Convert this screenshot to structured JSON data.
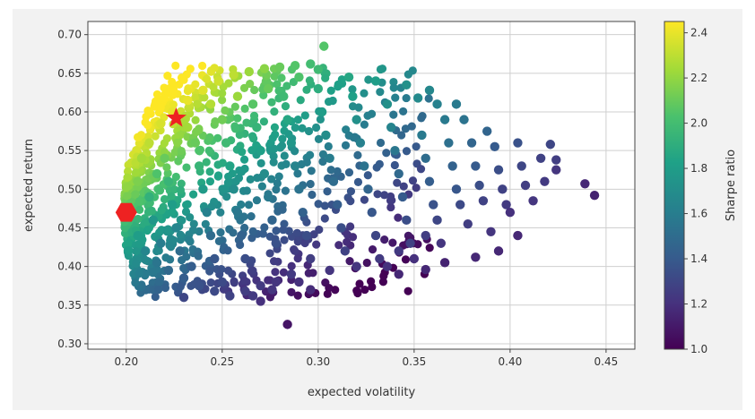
{
  "chart_data": {
    "type": "scatter",
    "title": "",
    "xlabel": "expected volatility",
    "ylabel": "expected return",
    "xlim": [
      0.18,
      0.465
    ],
    "ylim": [
      0.293,
      0.717
    ],
    "grid": true,
    "xticks": [
      {
        "value": 0.2,
        "label": "0.20"
      },
      {
        "value": 0.25,
        "label": "0.25"
      },
      {
        "value": 0.3,
        "label": "0.30"
      },
      {
        "value": 0.35,
        "label": "0.35"
      },
      {
        "value": 0.4,
        "label": "0.40"
      },
      {
        "value": 0.45,
        "label": "0.45"
      }
    ],
    "yticks": [
      {
        "value": 0.3,
        "label": "0.30"
      },
      {
        "value": 0.35,
        "label": "0.35"
      },
      {
        "value": 0.4,
        "label": "0.40"
      },
      {
        "value": 0.45,
        "label": "0.45"
      },
      {
        "value": 0.5,
        "label": "0.50"
      },
      {
        "value": 0.55,
        "label": "0.55"
      },
      {
        "value": 0.6,
        "label": "0.60"
      },
      {
        "value": 0.65,
        "label": "0.65"
      },
      {
        "value": 0.7,
        "label": "0.70"
      }
    ],
    "colorbar": {
      "label": "Sharpe ratio",
      "colormap": "viridis",
      "range": [
        1.0,
        2.45
      ],
      "ticks": [
        {
          "value": 1.0,
          "label": "1.0"
        },
        {
          "value": 1.2,
          "label": "1.2"
        },
        {
          "value": 1.4,
          "label": "1.4"
        },
        {
          "value": 1.6,
          "label": "1.6"
        },
        {
          "value": 1.8,
          "label": "1.8"
        },
        {
          "value": 2.0,
          "label": "2.0"
        },
        {
          "value": 2.2,
          "label": "2.2"
        },
        {
          "value": 2.4,
          "label": "2.4"
        }
      ]
    },
    "markers": [
      {
        "shape": "star",
        "x": 0.226,
        "y": 0.592,
        "color": "#ee2222"
      },
      {
        "shape": "hexagon",
        "x": 0.2,
        "y": 0.47,
        "color": "#ee2222"
      }
    ],
    "points": [
      {
        "x": 0.202,
        "y": 0.47,
        "s": 2.0
      },
      {
        "x": 0.206,
        "y": 0.51,
        "s": 2.15
      },
      {
        "x": 0.208,
        "y": 0.54,
        "s": 2.24
      },
      {
        "x": 0.212,
        "y": 0.56,
        "s": 2.3
      },
      {
        "x": 0.218,
        "y": 0.585,
        "s": 2.36
      },
      {
        "x": 0.224,
        "y": 0.6,
        "s": 2.4
      },
      {
        "x": 0.232,
        "y": 0.615,
        "s": 2.4
      },
      {
        "x": 0.24,
        "y": 0.628,
        "s": 2.38
      },
      {
        "x": 0.248,
        "y": 0.64,
        "s": 2.34
      },
      {
        "x": 0.256,
        "y": 0.648,
        "s": 2.3
      },
      {
        "x": 0.264,
        "y": 0.652,
        "s": 2.22
      },
      {
        "x": 0.272,
        "y": 0.656,
        "s": 2.18
      },
      {
        "x": 0.28,
        "y": 0.658,
        "s": 2.1
      },
      {
        "x": 0.288,
        "y": 0.66,
        "s": 2.05
      },
      {
        "x": 0.296,
        "y": 0.662,
        "s": 2.0
      },
      {
        "x": 0.303,
        "y": 0.685,
        "s": 2.05
      },
      {
        "x": 0.206,
        "y": 0.44,
        "s": 1.8
      },
      {
        "x": 0.21,
        "y": 0.42,
        "s": 1.65
      },
      {
        "x": 0.216,
        "y": 0.405,
        "s": 1.55
      },
      {
        "x": 0.222,
        "y": 0.395,
        "s": 1.48
      },
      {
        "x": 0.23,
        "y": 0.385,
        "s": 1.42
      },
      {
        "x": 0.238,
        "y": 0.375,
        "s": 1.36
      },
      {
        "x": 0.246,
        "y": 0.368,
        "s": 1.32
      },
      {
        "x": 0.254,
        "y": 0.362,
        "s": 1.28
      },
      {
        "x": 0.262,
        "y": 0.368,
        "s": 1.26
      },
      {
        "x": 0.27,
        "y": 0.375,
        "s": 1.24
      },
      {
        "x": 0.278,
        "y": 0.38,
        "s": 1.22
      },
      {
        "x": 0.286,
        "y": 0.39,
        "s": 1.24
      },
      {
        "x": 0.284,
        "y": 0.325,
        "s": 1.08
      },
      {
        "x": 0.22,
        "y": 0.54,
        "s": 2.1
      },
      {
        "x": 0.222,
        "y": 0.51,
        "s": 1.95
      },
      {
        "x": 0.224,
        "y": 0.48,
        "s": 1.8
      },
      {
        "x": 0.226,
        "y": 0.45,
        "s": 1.65
      },
      {
        "x": 0.228,
        "y": 0.42,
        "s": 1.5
      },
      {
        "x": 0.236,
        "y": 0.56,
        "s": 2.1
      },
      {
        "x": 0.238,
        "y": 0.53,
        "s": 1.95
      },
      {
        "x": 0.24,
        "y": 0.5,
        "s": 1.78
      },
      {
        "x": 0.242,
        "y": 0.47,
        "s": 1.62
      },
      {
        "x": 0.244,
        "y": 0.44,
        "s": 1.5
      },
      {
        "x": 0.246,
        "y": 0.41,
        "s": 1.38
      },
      {
        "x": 0.25,
        "y": 0.59,
        "s": 2.12
      },
      {
        "x": 0.252,
        "y": 0.56,
        "s": 1.98
      },
      {
        "x": 0.254,
        "y": 0.53,
        "s": 1.84
      },
      {
        "x": 0.256,
        "y": 0.5,
        "s": 1.7
      },
      {
        "x": 0.258,
        "y": 0.47,
        "s": 1.56
      },
      {
        "x": 0.26,
        "y": 0.44,
        "s": 1.44
      },
      {
        "x": 0.262,
        "y": 0.41,
        "s": 1.34
      },
      {
        "x": 0.266,
        "y": 0.61,
        "s": 2.06
      },
      {
        "x": 0.268,
        "y": 0.58,
        "s": 1.94
      },
      {
        "x": 0.27,
        "y": 0.55,
        "s": 1.82
      },
      {
        "x": 0.272,
        "y": 0.52,
        "s": 1.7
      },
      {
        "x": 0.274,
        "y": 0.49,
        "s": 1.58
      },
      {
        "x": 0.276,
        "y": 0.46,
        "s": 1.46
      },
      {
        "x": 0.278,
        "y": 0.43,
        "s": 1.36
      },
      {
        "x": 0.282,
        "y": 0.62,
        "s": 1.98
      },
      {
        "x": 0.284,
        "y": 0.59,
        "s": 1.86
      },
      {
        "x": 0.286,
        "y": 0.56,
        "s": 1.76
      },
      {
        "x": 0.288,
        "y": 0.53,
        "s": 1.64
      },
      {
        "x": 0.29,
        "y": 0.5,
        "s": 1.54
      },
      {
        "x": 0.292,
        "y": 0.47,
        "s": 1.44
      },
      {
        "x": 0.294,
        "y": 0.44,
        "s": 1.34
      },
      {
        "x": 0.296,
        "y": 0.41,
        "s": 1.26
      },
      {
        "x": 0.3,
        "y": 0.63,
        "s": 1.9
      },
      {
        "x": 0.302,
        "y": 0.6,
        "s": 1.8
      },
      {
        "x": 0.304,
        "y": 0.57,
        "s": 1.7
      },
      {
        "x": 0.306,
        "y": 0.54,
        "s": 1.6
      },
      {
        "x": 0.308,
        "y": 0.51,
        "s": 1.5
      },
      {
        "x": 0.31,
        "y": 0.48,
        "s": 1.42
      },
      {
        "x": 0.312,
        "y": 0.45,
        "s": 1.34
      },
      {
        "x": 0.314,
        "y": 0.42,
        "s": 1.28
      },
      {
        "x": 0.318,
        "y": 0.62,
        "s": 1.82
      },
      {
        "x": 0.32,
        "y": 0.59,
        "s": 1.72
      },
      {
        "x": 0.322,
        "y": 0.56,
        "s": 1.62
      },
      {
        "x": 0.324,
        "y": 0.53,
        "s": 1.54
      },
      {
        "x": 0.326,
        "y": 0.5,
        "s": 1.46
      },
      {
        "x": 0.328,
        "y": 0.47,
        "s": 1.38
      },
      {
        "x": 0.33,
        "y": 0.44,
        "s": 1.3
      },
      {
        "x": 0.332,
        "y": 0.41,
        "s": 1.24
      },
      {
        "x": 0.336,
        "y": 0.61,
        "s": 1.72
      },
      {
        "x": 0.338,
        "y": 0.58,
        "s": 1.64
      },
      {
        "x": 0.34,
        "y": 0.55,
        "s": 1.56
      },
      {
        "x": 0.342,
        "y": 0.52,
        "s": 1.48
      },
      {
        "x": 0.344,
        "y": 0.49,
        "s": 1.4
      },
      {
        "x": 0.346,
        "y": 0.46,
        "s": 1.34
      },
      {
        "x": 0.348,
        "y": 0.43,
        "s": 1.28
      },
      {
        "x": 0.352,
        "y": 0.618,
        "s": 1.68
      },
      {
        "x": 0.354,
        "y": 0.57,
        "s": 1.58
      },
      {
        "x": 0.356,
        "y": 0.54,
        "s": 1.5
      },
      {
        "x": 0.358,
        "y": 0.51,
        "s": 1.42
      },
      {
        "x": 0.36,
        "y": 0.48,
        "s": 1.36
      },
      {
        "x": 0.362,
        "y": 0.46,
        "s": 1.3
      },
      {
        "x": 0.366,
        "y": 0.59,
        "s": 1.58
      },
      {
        "x": 0.368,
        "y": 0.56,
        "s": 1.52
      },
      {
        "x": 0.37,
        "y": 0.53,
        "s": 1.44
      },
      {
        "x": 0.372,
        "y": 0.5,
        "s": 1.38
      },
      {
        "x": 0.374,
        "y": 0.48,
        "s": 1.32
      },
      {
        "x": 0.38,
        "y": 0.56,
        "s": 1.46
      },
      {
        "x": 0.382,
        "y": 0.53,
        "s": 1.4
      },
      {
        "x": 0.384,
        "y": 0.505,
        "s": 1.34
      },
      {
        "x": 0.386,
        "y": 0.485,
        "s": 1.28
      },
      {
        "x": 0.392,
        "y": 0.555,
        "s": 1.4
      },
      {
        "x": 0.394,
        "y": 0.525,
        "s": 1.34
      },
      {
        "x": 0.396,
        "y": 0.5,
        "s": 1.28
      },
      {
        "x": 0.398,
        "y": 0.48,
        "s": 1.24
      },
      {
        "x": 0.404,
        "y": 0.56,
        "s": 1.36
      },
      {
        "x": 0.406,
        "y": 0.53,
        "s": 1.3
      },
      {
        "x": 0.408,
        "y": 0.505,
        "s": 1.26
      },
      {
        "x": 0.412,
        "y": 0.485,
        "s": 1.22
      },
      {
        "x": 0.416,
        "y": 0.54,
        "s": 1.28
      },
      {
        "x": 0.418,
        "y": 0.51,
        "s": 1.24
      },
      {
        "x": 0.421,
        "y": 0.558,
        "s": 1.3
      },
      {
        "x": 0.424,
        "y": 0.538,
        "s": 1.26
      },
      {
        "x": 0.424,
        "y": 0.525,
        "s": 1.22
      },
      {
        "x": 0.439,
        "y": 0.507,
        "s": 1.16
      },
      {
        "x": 0.444,
        "y": 0.492,
        "s": 1.14
      },
      {
        "x": 0.378,
        "y": 0.455,
        "s": 1.26
      },
      {
        "x": 0.39,
        "y": 0.445,
        "s": 1.22
      },
      {
        "x": 0.4,
        "y": 0.47,
        "s": 1.2
      },
      {
        "x": 0.356,
        "y": 0.44,
        "s": 1.26
      },
      {
        "x": 0.364,
        "y": 0.43,
        "s": 1.22
      },
      {
        "x": 0.342,
        "y": 0.42,
        "s": 1.24
      },
      {
        "x": 0.35,
        "y": 0.41,
        "s": 1.2
      },
      {
        "x": 0.336,
        "y": 0.4,
        "s": 1.2
      },
      {
        "x": 0.32,
        "y": 0.4,
        "s": 1.22
      },
      {
        "x": 0.306,
        "y": 0.395,
        "s": 1.22
      },
      {
        "x": 0.29,
        "y": 0.38,
        "s": 1.2
      },
      {
        "x": 0.276,
        "y": 0.37,
        "s": 1.22
      },
      {
        "x": 0.266,
        "y": 0.362,
        "s": 1.24
      },
      {
        "x": 0.342,
        "y": 0.39,
        "s": 1.16
      },
      {
        "x": 0.356,
        "y": 0.396,
        "s": 1.16
      },
      {
        "x": 0.366,
        "y": 0.405,
        "s": 1.14
      },
      {
        "x": 0.382,
        "y": 0.412,
        "s": 1.16
      },
      {
        "x": 0.394,
        "y": 0.42,
        "s": 1.16
      },
      {
        "x": 0.404,
        "y": 0.44,
        "s": 1.16
      },
      {
        "x": 0.33,
        "y": 0.64,
        "s": 1.8
      },
      {
        "x": 0.316,
        "y": 0.645,
        "s": 1.86
      },
      {
        "x": 0.346,
        "y": 0.635,
        "s": 1.72
      },
      {
        "x": 0.362,
        "y": 0.61,
        "s": 1.62
      },
      {
        "x": 0.376,
        "y": 0.59,
        "s": 1.54
      },
      {
        "x": 0.388,
        "y": 0.575,
        "s": 1.46
      },
      {
        "x": 0.372,
        "y": 0.61,
        "s": 1.58
      },
      {
        "x": 0.358,
        "y": 0.628,
        "s": 1.66
      },
      {
        "x": 0.232,
        "y": 0.58,
        "s": 2.24
      },
      {
        "x": 0.216,
        "y": 0.52,
        "s": 2.04
      },
      {
        "x": 0.212,
        "y": 0.49,
        "s": 1.92
      },
      {
        "x": 0.214,
        "y": 0.46,
        "s": 1.76
      },
      {
        "x": 0.218,
        "y": 0.43,
        "s": 1.6
      },
      {
        "x": 0.234,
        "y": 0.4,
        "s": 1.42
      },
      {
        "x": 0.25,
        "y": 0.38,
        "s": 1.32
      },
      {
        "x": 0.258,
        "y": 0.62,
        "s": 2.22
      },
      {
        "x": 0.244,
        "y": 0.61,
        "s": 2.28
      },
      {
        "x": 0.274,
        "y": 0.63,
        "s": 2.1
      },
      {
        "x": 0.29,
        "y": 0.645,
        "s": 2.04
      },
      {
        "x": 0.3,
        "y": 0.655,
        "s": 1.98
      },
      {
        "x": 0.23,
        "y": 0.36,
        "s": 1.3
      },
      {
        "x": 0.27,
        "y": 0.355,
        "s": 1.2
      },
      {
        "x": 0.296,
        "y": 0.37,
        "s": 1.18
      }
    ]
  }
}
